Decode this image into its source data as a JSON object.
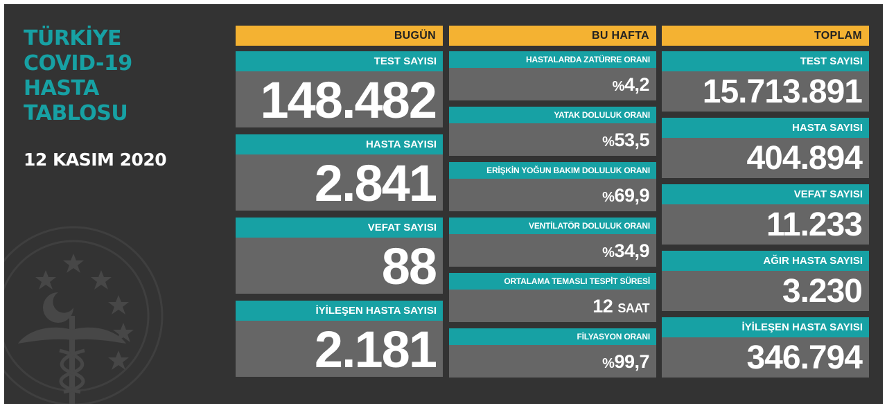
{
  "title_lines": [
    "TÜRKİYE",
    "COVID-19",
    "HASTA",
    "TABLOSU"
  ],
  "date": "12 KASIM 2020",
  "colors": {
    "teal": "#17a1a4",
    "orange": "#f4b232",
    "panel": "#333333",
    "value_bg": "#666666"
  },
  "today": {
    "header": "BUGÜN",
    "items": [
      {
        "label": "TEST SAYISI",
        "value": "148.482"
      },
      {
        "label": "HASTA SAYISI",
        "value": "2.841"
      },
      {
        "label": "VEFAT SAYISI",
        "value": "88"
      },
      {
        "label": "İYİLEŞEN HASTA SAYISI",
        "value": "2.181"
      }
    ]
  },
  "week": {
    "header": "BU HAFTA",
    "items": [
      {
        "label": "HASTALARDA ZATÜRRE ORANI",
        "prefix": "%",
        "value": "4,2",
        "unit": ""
      },
      {
        "label": "YATAK DOLULUK ORANI",
        "prefix": "%",
        "value": "53,5",
        "unit": ""
      },
      {
        "label": "ERİŞKİN YOĞUN BAKIM DOLULUK ORANI",
        "prefix": "%",
        "value": "69,9",
        "unit": ""
      },
      {
        "label": "VENTİLATÖR DOLULUK ORANI",
        "prefix": "%",
        "value": "34,9",
        "unit": ""
      },
      {
        "label": "ORTALAMA TEMASLI TESPİT SÜRESİ",
        "prefix": "",
        "value": "12",
        "unit": "SAAT"
      },
      {
        "label": "FİLYASYON ORANI",
        "prefix": "%",
        "value": "99,7",
        "unit": ""
      }
    ]
  },
  "total": {
    "header": "TOPLAM",
    "items": [
      {
        "label": "TEST SAYISI",
        "value": "15.713.891"
      },
      {
        "label": "HASTA SAYISI",
        "value": "404.894"
      },
      {
        "label": "VEFAT SAYISI",
        "value": "11.233"
      },
      {
        "label": "AĞIR HASTA SAYISI",
        "value": "3.230"
      },
      {
        "label": "İYİLEŞEN HASTA SAYISI",
        "value": "346.794"
      }
    ]
  }
}
